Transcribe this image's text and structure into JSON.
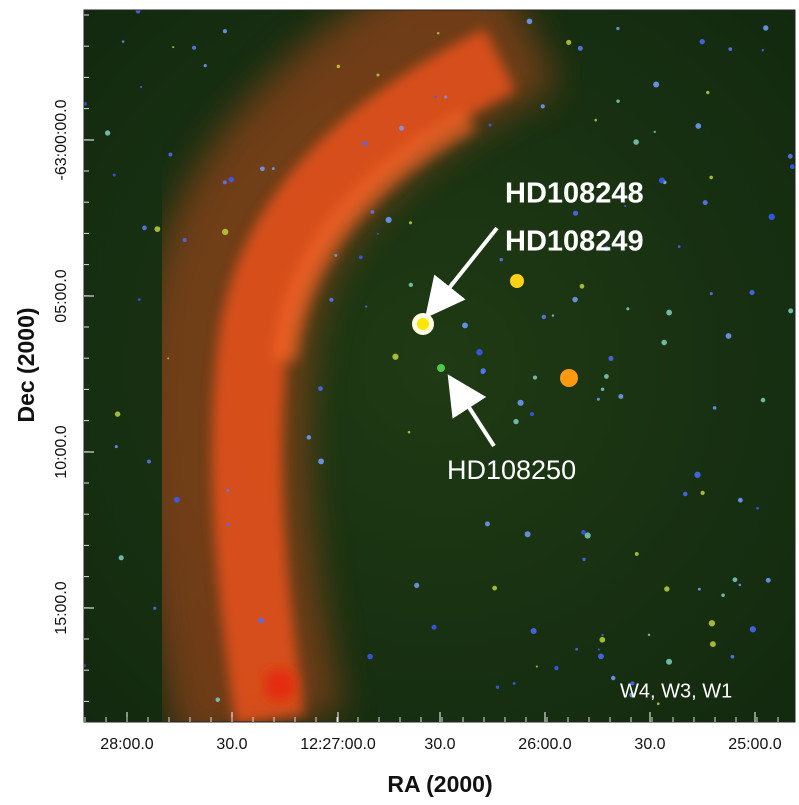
{
  "image": {
    "annotations": [
      "HD108248",
      "HD108249",
      "HD108250"
    ],
    "band_label": "W4, W3, W1"
  },
  "x_axis": {
    "label": "RA (2000)",
    "ticks": [
      "28:00.0",
      "30.0",
      "12:27:00.0",
      "30.0",
      "26:00.0",
      "30.0",
      "25:00.0"
    ]
  },
  "y_axis": {
    "label": "Dec (2000)",
    "ticks": [
      "-63:00:00.0",
      "05:00.0",
      "10:00.0",
      "15:00.0"
    ]
  }
}
